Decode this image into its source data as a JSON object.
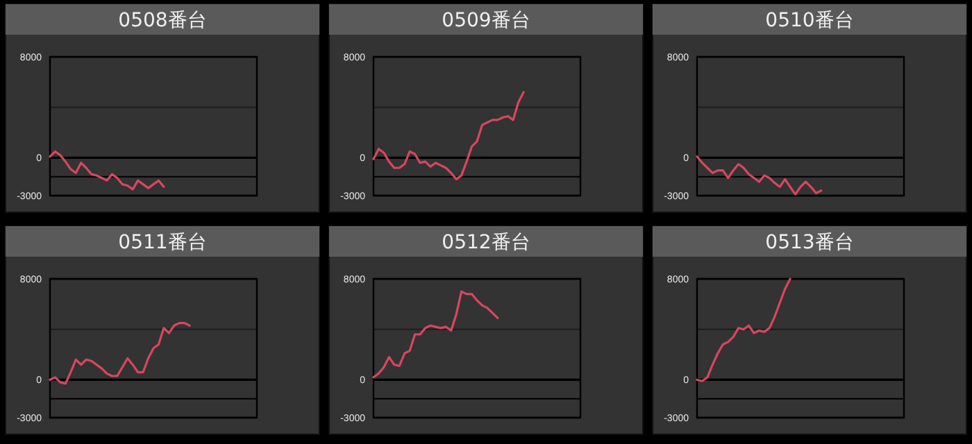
{
  "chart_data": [
    {
      "type": "line",
      "title": "0508番台",
      "categories": [
        null,
        null,
        null,
        null,
        null,
        null,
        null,
        null,
        null,
        null,
        null,
        null,
        null,
        null,
        null,
        null,
        null,
        null,
        null,
        null,
        null,
        null,
        null,
        null,
        null,
        null,
        null,
        null,
        null,
        null,
        null,
        null,
        null,
        null,
        null,
        null,
        null,
        null,
        null,
        null,
        null
      ],
      "series": [
        {
          "color": "#d8475f",
          "values": [
            100,
            500,
            200,
            -300,
            -900,
            -1200,
            -400,
            -800,
            -1300,
            -1400,
            -1600,
            -1800,
            -1300,
            -1600,
            -2100,
            -2200,
            -2500,
            -1800,
            -2100,
            -2400,
            -2100,
            -1800,
            -2300,
            null,
            null,
            null,
            null,
            null,
            null,
            null,
            null,
            null,
            null,
            null,
            null,
            null,
            null,
            null,
            null,
            null,
            null
          ]
        }
      ],
      "ylim": [
        -3000,
        8000
      ],
      "yticks": [
        8000,
        0,
        -3000
      ],
      "grid": "y",
      "tick_labels": "y",
      "ref_lines": [
        {
          "axis": "y",
          "value": 4000,
          "color": "#1e1e1e"
        },
        {
          "axis": "y",
          "value": -1500,
          "color": "#000000"
        }
      ]
    },
    {
      "type": "line",
      "title": "0509番台",
      "categories": [
        null,
        null,
        null,
        null,
        null,
        null,
        null,
        null,
        null,
        null,
        null,
        null,
        null,
        null,
        null,
        null,
        null,
        null,
        null,
        null,
        null,
        null,
        null,
        null,
        null,
        null,
        null,
        null,
        null,
        null,
        null,
        null,
        null,
        null,
        null,
        null,
        null,
        null,
        null,
        null,
        null
      ],
      "series": [
        {
          "color": "#d8475f",
          "values": [
            -100,
            700,
            400,
            -300,
            -800,
            -800,
            -500,
            500,
            300,
            -400,
            -300,
            -700,
            -400,
            -600,
            -800,
            -1200,
            -1700,
            -1400,
            -300,
            900,
            1300,
            2600,
            2800,
            3000,
            3000,
            3200,
            3300,
            3000,
            4400,
            5200,
            null,
            null,
            null,
            null,
            null,
            null,
            null,
            null,
            null,
            null,
            null
          ]
        }
      ],
      "ylim": [
        -3000,
        8000
      ],
      "yticks": [
        8000,
        0,
        -3000
      ],
      "grid": "y",
      "tick_labels": "y",
      "ref_lines": [
        {
          "axis": "y",
          "value": 4000,
          "color": "#1e1e1e"
        },
        {
          "axis": "y",
          "value": -1500,
          "color": "#000000"
        }
      ]
    },
    {
      "type": "line",
      "title": "0510番台",
      "categories": [
        null,
        null,
        null,
        null,
        null,
        null,
        null,
        null,
        null,
        null,
        null,
        null,
        null,
        null,
        null,
        null,
        null,
        null,
        null,
        null,
        null,
        null,
        null,
        null,
        null,
        null,
        null,
        null,
        null,
        null,
        null,
        null,
        null,
        null,
        null,
        null,
        null,
        null,
        null,
        null,
        null
      ],
      "series": [
        {
          "color": "#d8475f",
          "values": [
            100,
            -400,
            -800,
            -1200,
            -1000,
            -1000,
            -1600,
            -1000,
            -500,
            -800,
            -1300,
            -1600,
            -1900,
            -1400,
            -1600,
            -2000,
            -2300,
            -1700,
            -2300,
            -2900,
            -2300,
            -1900,
            -2300,
            -2800,
            -2600,
            null,
            null,
            null,
            null,
            null,
            null,
            null,
            null,
            null,
            null,
            null,
            null,
            null,
            null,
            null,
            null
          ]
        }
      ],
      "ylim": [
        -3000,
        8000
      ],
      "yticks": [
        8000,
        0,
        -3000
      ],
      "grid": "y",
      "tick_labels": "y",
      "ref_lines": [
        {
          "axis": "y",
          "value": 4000,
          "color": "#1e1e1e"
        },
        {
          "axis": "y",
          "value": -1500,
          "color": "#000000"
        }
      ]
    },
    {
      "type": "line",
      "title": "0511番台",
      "categories": [
        null,
        null,
        null,
        null,
        null,
        null,
        null,
        null,
        null,
        null,
        null,
        null,
        null,
        null,
        null,
        null,
        null,
        null,
        null,
        null,
        null,
        null,
        null,
        null,
        null,
        null,
        null,
        null,
        null,
        null,
        null,
        null,
        null,
        null,
        null,
        null,
        null,
        null,
        null,
        null,
        null
      ],
      "series": [
        {
          "color": "#d8475f",
          "values": [
            0,
            200,
            -200,
            -300,
            600,
            1600,
            1200,
            1600,
            1500,
            1200,
            900,
            500,
            300,
            300,
            1000,
            1700,
            1200,
            600,
            600,
            1700,
            2500,
            2800,
            4100,
            3700,
            4300,
            4500,
            4500,
            4300,
            null,
            null,
            null,
            null,
            null,
            null,
            null,
            null,
            null,
            null,
            null,
            null,
            null
          ]
        }
      ],
      "ylim": [
        -3000,
        8000
      ],
      "yticks": [
        8000,
        0,
        -3000
      ],
      "grid": "y",
      "tick_labels": "y",
      "ref_lines": [
        {
          "axis": "y",
          "value": 4000,
          "color": "#1e1e1e"
        },
        {
          "axis": "y",
          "value": -1500,
          "color": "#000000"
        }
      ]
    },
    {
      "type": "line",
      "title": "0512番台",
      "categories": [
        null,
        null,
        null,
        null,
        null,
        null,
        null,
        null,
        null,
        null,
        null,
        null,
        null,
        null,
        null,
        null,
        null,
        null,
        null,
        null,
        null,
        null,
        null,
        null,
        null,
        null,
        null,
        null,
        null,
        null,
        null,
        null,
        null,
        null,
        null,
        null,
        null,
        null,
        null,
        null,
        null
      ],
      "series": [
        {
          "color": "#d8475f",
          "values": [
            200,
            500,
            1000,
            1800,
            1200,
            1100,
            2100,
            2300,
            3600,
            3600,
            4100,
            4300,
            4200,
            4100,
            4200,
            3900,
            5200,
            7000,
            6800,
            6800,
            6300,
            5900,
            5700,
            5300,
            4900,
            null,
            null,
            null,
            null,
            null,
            null,
            null,
            null,
            null,
            null,
            null,
            null,
            null,
            null,
            null,
            null
          ]
        }
      ],
      "ylim": [
        -3000,
        8000
      ],
      "yticks": [
        8000,
        0,
        -3000
      ],
      "grid": "y",
      "tick_labels": "y",
      "ref_lines": [
        {
          "axis": "y",
          "value": 4000,
          "color": "#1e1e1e"
        },
        {
          "axis": "y",
          "value": -1500,
          "color": "#000000"
        }
      ]
    },
    {
      "type": "line",
      "title": "0513番台",
      "categories": [
        null,
        null,
        null,
        null,
        null,
        null,
        null,
        null,
        null,
        null,
        null,
        null,
        null,
        null,
        null,
        null,
        null,
        null,
        null,
        null,
        null,
        null,
        null,
        null,
        null,
        null,
        null,
        null,
        null,
        null,
        null,
        null,
        null,
        null,
        null,
        null,
        null,
        null,
        null,
        null,
        null
      ],
      "series": [
        {
          "color": "#d8475f",
          "values": [
            0,
            -100,
            200,
            1200,
            2100,
            2800,
            3000,
            3400,
            4100,
            4000,
            4300,
            3700,
            3900,
            3800,
            4100,
            5000,
            6100,
            7200,
            8000,
            null,
            null,
            null,
            null,
            null,
            null,
            null,
            null,
            null,
            null,
            null,
            null,
            null,
            null,
            null,
            null,
            null,
            null,
            null,
            null,
            null,
            null
          ]
        }
      ],
      "ylim": [
        -3000,
        8000
      ],
      "yticks": [
        8000,
        0,
        -3000
      ],
      "grid": "y",
      "tick_labels": "y",
      "ref_lines": [
        {
          "axis": "y",
          "value": 4000,
          "color": "#1e1e1e"
        },
        {
          "axis": "y",
          "value": -1500,
          "color": "#000000"
        }
      ]
    }
  ]
}
